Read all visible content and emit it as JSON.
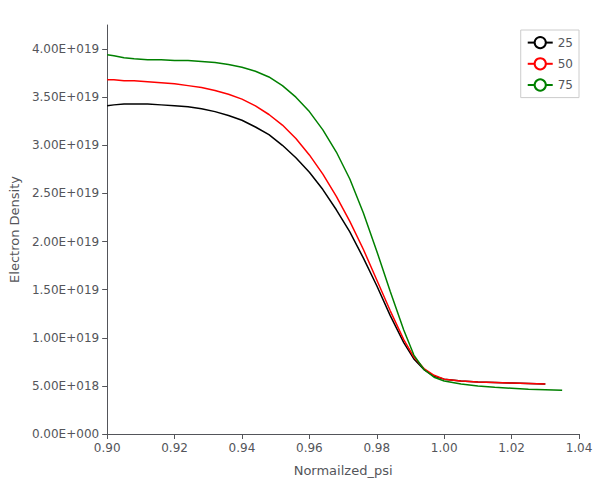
{
  "chart_data": {
    "type": "line",
    "xlabel": "Normailzed_psi",
    "ylabel": "Electron Density",
    "xlim": [
      0.9,
      1.04
    ],
    "ylim": [
      0.0,
      4.25e+19
    ],
    "xticks": [
      {
        "value": 0.9,
        "label": "0.90"
      },
      0.92,
      0.94,
      0.96,
      0.98,
      {
        "value": 1.0,
        "label": "1.00"
      },
      1.02,
      1.04
    ],
    "yticks": [
      {
        "value": 0.0,
        "label": "0.00E+000"
      },
      {
        "value": 5e+18,
        "label": "5.00E+018"
      },
      {
        "value": 1e+19,
        "label": "1.00E+019"
      },
      {
        "value": 1.5e+19,
        "label": "1.50E+019"
      },
      {
        "value": 2e+19,
        "label": "2.00E+019"
      },
      {
        "value": 2.5e+19,
        "label": "2.50E+019"
      },
      {
        "value": 3e+19,
        "label": "3.00E+019"
      },
      {
        "value": 3.5e+19,
        "label": "3.50E+019"
      },
      {
        "value": 4e+19,
        "label": "4.00E+019"
      }
    ],
    "grid": false,
    "legend": "upper right",
    "series": [
      {
        "name": "25",
        "color": "black",
        "x": [
          0.9,
          0.902,
          0.905,
          0.908,
          0.912,
          0.916,
          0.92,
          0.924,
          0.928,
          0.932,
          0.936,
          0.94,
          0.944,
          0.948,
          0.952,
          0.956,
          0.96,
          0.964,
          0.968,
          0.972,
          0.976,
          0.98,
          0.984,
          0.988,
          0.991,
          0.994,
          0.997,
          1.0,
          1.005,
          1.01,
          1.015,
          1.02,
          1.025,
          1.03
        ],
        "values": [
          3.41e+19,
          3.42e+19,
          3.43e+19,
          3.43e+19,
          3.43e+19,
          3.42e+19,
          3.41e+19,
          3.4e+19,
          3.38e+19,
          3.35e+19,
          3.31e+19,
          3.26e+19,
          3.19e+19,
          3.11e+19,
          3e+19,
          2.87e+19,
          2.72e+19,
          2.54e+19,
          2.33e+19,
          2.1e+19,
          1.83e+19,
          1.54e+19,
          1.23e+19,
          9.5e+18,
          7.8e+18,
          6.7e+18,
          6e+18,
          5.7e+18,
          5.5e+18,
          5.4e+18,
          5.35e+18,
          5.3e+18,
          5.25e+18,
          5.2e+18
        ]
      },
      {
        "name": "50",
        "color": "red",
        "x": [
          0.9,
          0.902,
          0.905,
          0.908,
          0.912,
          0.916,
          0.92,
          0.924,
          0.928,
          0.932,
          0.936,
          0.94,
          0.944,
          0.948,
          0.952,
          0.956,
          0.96,
          0.964,
          0.968,
          0.972,
          0.976,
          0.98,
          0.984,
          0.988,
          0.991,
          0.994,
          0.997,
          1.0,
          1.005,
          1.01,
          1.015,
          1.02,
          1.025,
          1.03
        ],
        "values": [
          3.68e+19,
          3.68e+19,
          3.67e+19,
          3.67e+19,
          3.66e+19,
          3.65e+19,
          3.64e+19,
          3.62e+19,
          3.6e+19,
          3.57e+19,
          3.53e+19,
          3.48e+19,
          3.41e+19,
          3.32e+19,
          3.21e+19,
          3.07e+19,
          2.9e+19,
          2.7e+19,
          2.47e+19,
          2.21e+19,
          1.92e+19,
          1.6e+19,
          1.28e+19,
          9.8e+18,
          8e+18,
          6.8e+18,
          6.1e+18,
          5.7e+18,
          5.5e+18,
          5.4e+18,
          5.35e+18,
          5.3e+18,
          5.25e+18,
          5.2e+18
        ]
      },
      {
        "name": "75",
        "color": "green",
        "x": [
          0.9,
          0.902,
          0.905,
          0.908,
          0.912,
          0.916,
          0.92,
          0.924,
          0.928,
          0.932,
          0.936,
          0.94,
          0.944,
          0.948,
          0.952,
          0.956,
          0.96,
          0.964,
          0.968,
          0.972,
          0.976,
          0.98,
          0.984,
          0.988,
          0.991,
          0.994,
          0.997,
          1.0,
          1.005,
          1.01,
          1.015,
          1.02,
          1.025,
          1.03,
          1.035
        ],
        "values": [
          3.94e+19,
          3.93e+19,
          3.91e+19,
          3.9e+19,
          3.89e+19,
          3.89e+19,
          3.88e+19,
          3.88e+19,
          3.87e+19,
          3.86e+19,
          3.84e+19,
          3.81e+19,
          3.77e+19,
          3.71e+19,
          3.62e+19,
          3.5e+19,
          3.35e+19,
          3.16e+19,
          2.93e+19,
          2.65e+19,
          2.3e+19,
          1.9e+19,
          1.48e+19,
          1.08e+19,
          8.2e+18,
          6.7e+18,
          5.9e+18,
          5.5e+18,
          5.2e+18,
          5e+18,
          4.85e+18,
          4.75e+18,
          4.65e+18,
          4.6e+18,
          4.55e+18
        ]
      }
    ]
  }
}
